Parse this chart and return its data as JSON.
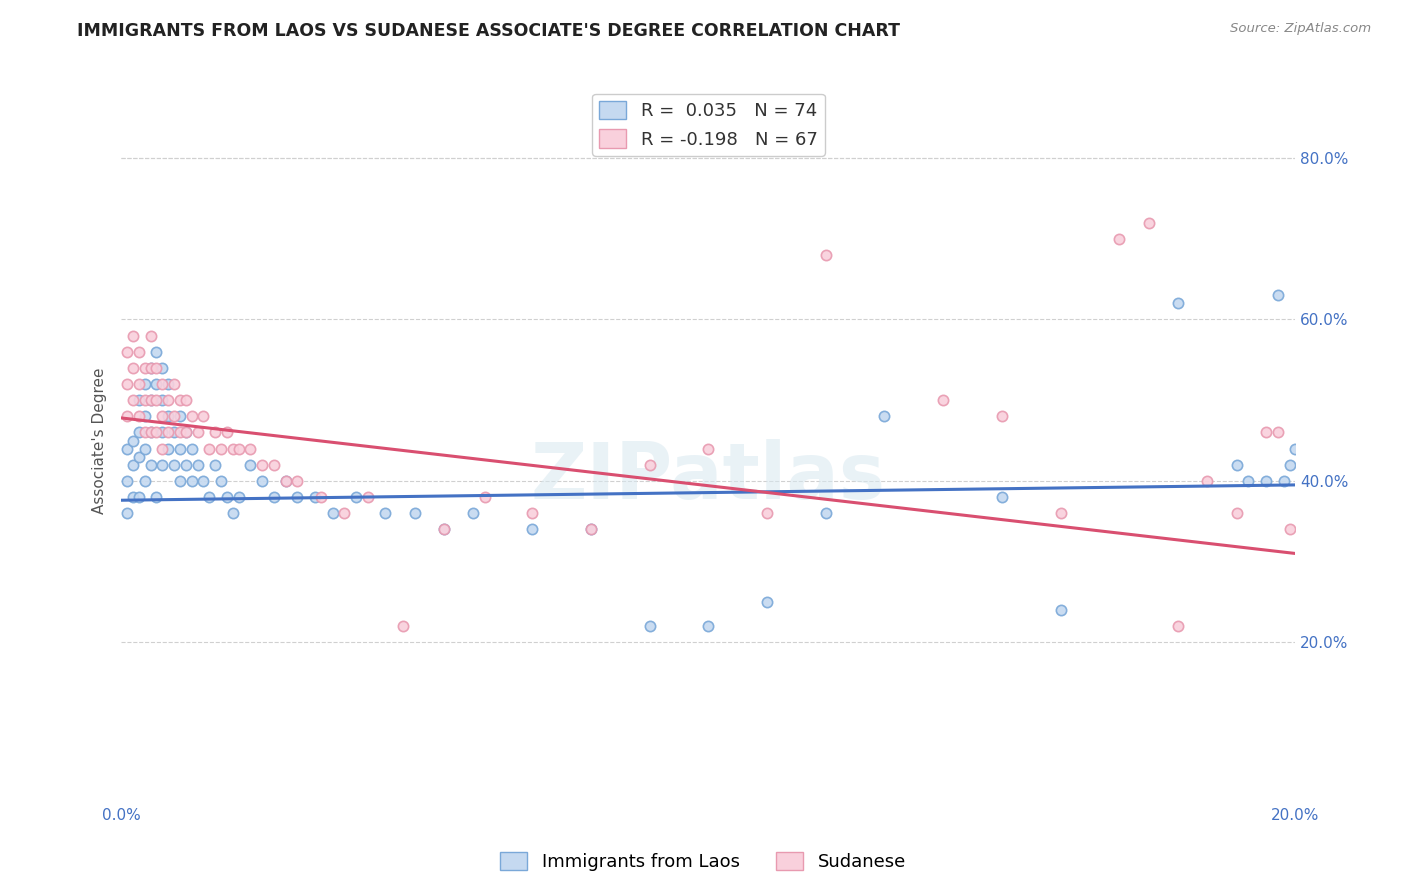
{
  "title": "IMMIGRANTS FROM LAOS VS SUDANESE ASSOCIATE'S DEGREE CORRELATION CHART",
  "source": "Source: ZipAtlas.com",
  "ylabel": "Associate's Degree",
  "watermark": "ZIPatlas",
  "legend_blue_label": "Immigrants from Laos",
  "legend_pink_label": "Sudanese",
  "legend_blue_r": "R =  0.035",
  "legend_blue_n": "N = 74",
  "legend_pink_r": "R = -0.198",
  "legend_pink_n": "N = 67",
  "blue_face_color": "#c5d9f0",
  "blue_edge_color": "#7aa8d8",
  "pink_face_color": "#f9d0dc",
  "pink_edge_color": "#e89ab0",
  "blue_line_color": "#4472c4",
  "pink_line_color": "#d94f70",
  "xlim": [
    0.0,
    0.2
  ],
  "ylim": [
    0.0,
    0.9
  ],
  "xticks": [
    0.0,
    0.05,
    0.1,
    0.15,
    0.2
  ],
  "xtick_labels": [
    "0.0%",
    "",
    "",
    "",
    "20.0%"
  ],
  "yticks": [
    0.2,
    0.4,
    0.6,
    0.8
  ],
  "ytick_labels": [
    "20.0%",
    "40.0%",
    "60.0%",
    "80.0%"
  ],
  "blue_scatter_x": [
    0.001,
    0.001,
    0.001,
    0.002,
    0.002,
    0.002,
    0.003,
    0.003,
    0.003,
    0.003,
    0.004,
    0.004,
    0.004,
    0.004,
    0.005,
    0.005,
    0.005,
    0.005,
    0.006,
    0.006,
    0.006,
    0.007,
    0.007,
    0.007,
    0.007,
    0.008,
    0.008,
    0.008,
    0.009,
    0.009,
    0.01,
    0.01,
    0.01,
    0.011,
    0.011,
    0.012,
    0.012,
    0.013,
    0.014,
    0.015,
    0.016,
    0.017,
    0.018,
    0.019,
    0.02,
    0.022,
    0.024,
    0.026,
    0.028,
    0.03,
    0.033,
    0.036,
    0.04,
    0.045,
    0.05,
    0.055,
    0.06,
    0.07,
    0.08,
    0.09,
    0.1,
    0.11,
    0.12,
    0.13,
    0.15,
    0.16,
    0.18,
    0.19,
    0.192,
    0.195,
    0.197,
    0.198,
    0.199,
    0.2
  ],
  "blue_scatter_y": [
    0.44,
    0.4,
    0.36,
    0.45,
    0.42,
    0.38,
    0.5,
    0.46,
    0.43,
    0.38,
    0.52,
    0.48,
    0.44,
    0.4,
    0.54,
    0.5,
    0.46,
    0.42,
    0.56,
    0.52,
    0.38,
    0.54,
    0.5,
    0.46,
    0.42,
    0.52,
    0.48,
    0.44,
    0.46,
    0.42,
    0.48,
    0.44,
    0.4,
    0.46,
    0.42,
    0.44,
    0.4,
    0.42,
    0.4,
    0.38,
    0.42,
    0.4,
    0.38,
    0.36,
    0.38,
    0.42,
    0.4,
    0.38,
    0.4,
    0.38,
    0.38,
    0.36,
    0.38,
    0.36,
    0.36,
    0.34,
    0.36,
    0.34,
    0.34,
    0.22,
    0.22,
    0.25,
    0.36,
    0.48,
    0.38,
    0.24,
    0.62,
    0.42,
    0.4,
    0.4,
    0.63,
    0.4,
    0.42,
    0.44
  ],
  "pink_scatter_x": [
    0.001,
    0.001,
    0.001,
    0.002,
    0.002,
    0.002,
    0.003,
    0.003,
    0.003,
    0.004,
    0.004,
    0.004,
    0.005,
    0.005,
    0.005,
    0.005,
    0.006,
    0.006,
    0.006,
    0.007,
    0.007,
    0.007,
    0.008,
    0.008,
    0.009,
    0.009,
    0.01,
    0.01,
    0.011,
    0.011,
    0.012,
    0.013,
    0.014,
    0.015,
    0.016,
    0.017,
    0.018,
    0.019,
    0.02,
    0.022,
    0.024,
    0.026,
    0.028,
    0.03,
    0.034,
    0.038,
    0.042,
    0.048,
    0.055,
    0.062,
    0.07,
    0.08,
    0.09,
    0.1,
    0.11,
    0.12,
    0.14,
    0.15,
    0.16,
    0.17,
    0.175,
    0.18,
    0.185,
    0.19,
    0.195,
    0.197,
    0.199
  ],
  "pink_scatter_y": [
    0.56,
    0.52,
    0.48,
    0.58,
    0.54,
    0.5,
    0.56,
    0.52,
    0.48,
    0.54,
    0.5,
    0.46,
    0.58,
    0.54,
    0.5,
    0.46,
    0.54,
    0.5,
    0.46,
    0.52,
    0.48,
    0.44,
    0.5,
    0.46,
    0.52,
    0.48,
    0.5,
    0.46,
    0.5,
    0.46,
    0.48,
    0.46,
    0.48,
    0.44,
    0.46,
    0.44,
    0.46,
    0.44,
    0.44,
    0.44,
    0.42,
    0.42,
    0.4,
    0.4,
    0.38,
    0.36,
    0.38,
    0.22,
    0.34,
    0.38,
    0.36,
    0.34,
    0.42,
    0.44,
    0.36,
    0.68,
    0.5,
    0.48,
    0.36,
    0.7,
    0.72,
    0.22,
    0.4,
    0.36,
    0.46,
    0.46,
    0.34
  ],
  "blue_line_x": [
    0.0,
    0.2
  ],
  "blue_line_y": [
    0.376,
    0.395
  ],
  "pink_line_x": [
    0.0,
    0.2
  ],
  "pink_line_y": [
    0.478,
    0.31
  ],
  "background_color": "#ffffff",
  "grid_color": "#d0d0d0",
  "title_fontsize": 12.5,
  "axis_fontsize": 11,
  "tick_fontsize": 11,
  "legend_fontsize": 13,
  "scatter_size": 55,
  "scatter_alpha": 0.9,
  "scatter_linewidth": 1.2
}
